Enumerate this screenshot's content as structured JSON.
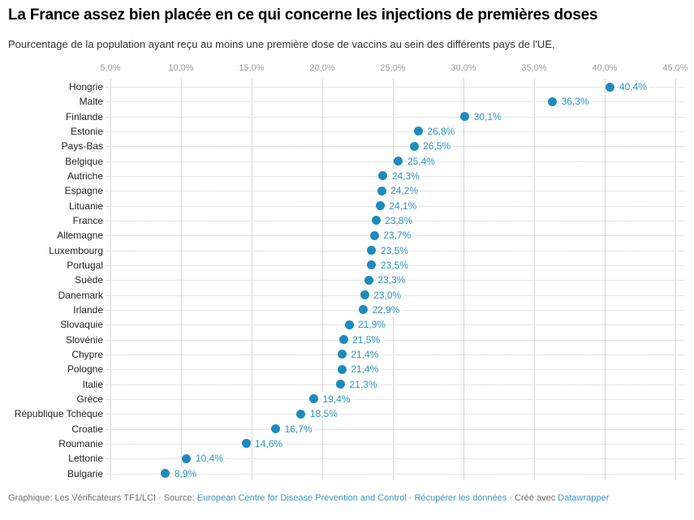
{
  "header": {
    "title": "La France assez bien placée en ce qui concerne les injections de premières doses",
    "subtitle": "Pourcentage de la population ayant reçu au moins une première dose de vaccins au sein des différents pays de l'UE,"
  },
  "chart_data": {
    "type": "scatter",
    "chart_style": "dot-plot-horizontal",
    "title": "La France assez bien placée en ce qui concerne les injections de premières doses",
    "subtitle": "Pourcentage de la population ayant reçu au moins une première dose de vaccins au sein des différents pays de l'UE,",
    "xlabel": "",
    "ylabel": "",
    "xlim": [
      0,
      46.5
    ],
    "grid": "vertical",
    "legend": "none",
    "x_ticks": {
      "values": [
        5,
        10,
        15,
        20,
        25,
        30,
        35,
        40,
        45
      ],
      "labels": [
        "5,0%",
        "10,0%",
        "15,0%",
        "20,0%",
        "25,0%",
        "30,0%",
        "35,0%",
        "40,0%",
        "45,0%"
      ]
    },
    "categories": [
      "Hongrie",
      "Malte",
      "Finlande",
      "Estonie",
      "Pays-Bas",
      "Belgique",
      "Autriche",
      "Espagne",
      "Lituanie",
      "France",
      "Allemagne",
      "Luxembourg",
      "Portugal",
      "Suède",
      "Danemark",
      "Irlande",
      "Slovaquie",
      "Slovénie",
      "Chypre",
      "Pologne",
      "Italie",
      "Grèce",
      "République Tchèque",
      "Croatie",
      "Roumanie",
      "Lettonie",
      "Bulgarie"
    ],
    "values": [
      40.4,
      36.3,
      30.1,
      26.8,
      26.5,
      25.4,
      24.3,
      24.2,
      24.1,
      23.8,
      23.7,
      23.5,
      23.5,
      23.3,
      23.0,
      22.9,
      21.9,
      21.5,
      21.4,
      21.4,
      21.3,
      19.4,
      18.5,
      16.7,
      14.6,
      10.4,
      8.9
    ],
    "value_labels": [
      "40,4%",
      "36,3%",
      "30,1%",
      "26,8%",
      "26,5%",
      "25,4%",
      "24,3%",
      "24,2%",
      "24,1%",
      "23,8%",
      "23,7%",
      "23,5%",
      "23,5%",
      "23,3%",
      "23,0%",
      "22,9%",
      "21,9%",
      "21,5%",
      "21,4%",
      "21,4%",
      "21,3%",
      "19,4%",
      "18,5%",
      "16,7%",
      "14,6%",
      "10,4%",
      "8,9%"
    ]
  },
  "colors": {
    "dot": "#1d8bbd",
    "value_label": "#2b94c4",
    "link": "#3a96c6",
    "grid": "#dadada",
    "leader": "#c9c9c9",
    "tick_label": "#9b9b9b",
    "country_label": "#222222",
    "footer_text": "#707070"
  },
  "footer": {
    "parts": [
      {
        "text": "Graphique: Les Vérificateurs TF1/LCI · Source: ",
        "link": false,
        "name": "footer-credit-text"
      },
      {
        "text": "European Centre for Disease Prevention and Control",
        "link": true,
        "name": "footer-source-link"
      },
      {
        "text": " · ",
        "link": false,
        "name": "footer-separator-1"
      },
      {
        "text": "Récupérer les données",
        "link": true,
        "name": "footer-get-data-link"
      },
      {
        "text": " · Créé avec ",
        "link": false,
        "name": "footer-created-with-text"
      },
      {
        "text": "Datawrapper",
        "link": true,
        "name": "footer-datawrapper-link"
      }
    ]
  }
}
